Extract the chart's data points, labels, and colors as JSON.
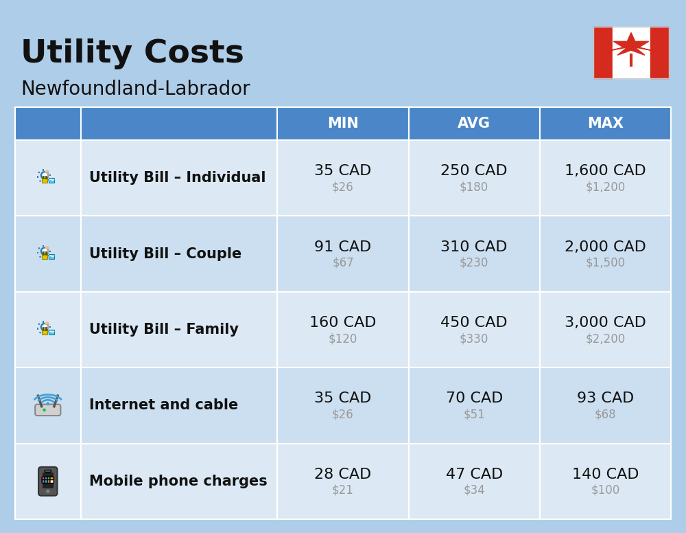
{
  "title": "Utility Costs",
  "subtitle": "Newfoundland-Labrador",
  "background_color": "#aecde8",
  "header_bg_color": "#4a86c8",
  "header_text_color": "#ffffff",
  "row_bg_color_1": "#dce9f5",
  "row_bg_color_2": "#ccdff0",
  "col_headers": [
    "",
    "",
    "MIN",
    "AVG",
    "MAX"
  ],
  "rows": [
    {
      "label": "Utility Bill – Individual",
      "icon": "utility",
      "min_cad": "35 CAD",
      "min_usd": "$26",
      "avg_cad": "250 CAD",
      "avg_usd": "$180",
      "max_cad": "1,600 CAD",
      "max_usd": "$1,200"
    },
    {
      "label": "Utility Bill – Couple",
      "icon": "utility",
      "min_cad": "91 CAD",
      "min_usd": "$67",
      "avg_cad": "310 CAD",
      "avg_usd": "$230",
      "max_cad": "2,000 CAD",
      "max_usd": "$1,500"
    },
    {
      "label": "Utility Bill – Family",
      "icon": "utility",
      "min_cad": "160 CAD",
      "min_usd": "$120",
      "avg_cad": "450 CAD",
      "avg_usd": "$330",
      "max_cad": "3,000 CAD",
      "max_usd": "$2,200"
    },
    {
      "label": "Internet and cable",
      "icon": "internet",
      "min_cad": "35 CAD",
      "min_usd": "$26",
      "avg_cad": "70 CAD",
      "avg_usd": "$51",
      "max_cad": "93 CAD",
      "max_usd": "$68"
    },
    {
      "label": "Mobile phone charges",
      "icon": "mobile",
      "min_cad": "28 CAD",
      "min_usd": "$21",
      "avg_cad": "47 CAD",
      "avg_usd": "$34",
      "max_cad": "140 CAD",
      "max_usd": "$100"
    }
  ],
  "title_fontsize": 34,
  "subtitle_fontsize": 20,
  "header_fontsize": 15,
  "label_fontsize": 15,
  "value_fontsize": 16,
  "subvalue_fontsize": 12
}
